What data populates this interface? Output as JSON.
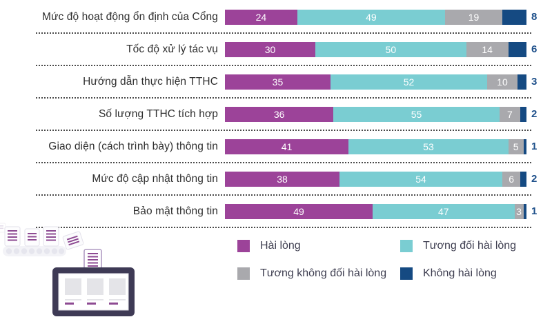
{
  "colors": {
    "purple": "#9c4399",
    "teal": "#7acdd2",
    "gray": "#a9a9ad",
    "navy": "#154a82",
    "label_text": "#2e2e2e",
    "outside_value_text": "#1d4f8a",
    "legend_text": "#3e3e50",
    "dotted_line": "#4a4a4a"
  },
  "chart_data": {
    "type": "bar",
    "orientation": "horizontal-stacked",
    "title": "",
    "xlabel": "",
    "ylabel": "",
    "xlim": [
      0,
      100
    ],
    "grid": false,
    "legend_position": "bottom",
    "value_labels": "inside-white, last segment value shown outside bar in navy",
    "outside_label_series": 3,
    "categories": [
      "Mức độ hoạt động ổn định của Cổng",
      "Tốc độ xử lý tác vụ",
      "Hướng dẫn thực hiện TTHC",
      "Số lượng TTHC tích hợp",
      "Giao diện (cách trình bày) thông tin",
      "Mức độ cập nhật thông tin",
      "Bảo mật thông tin"
    ],
    "series": [
      {
        "name": "Hài lòng",
        "color_key": "purple",
        "values": [
          24,
          30,
          35,
          36,
          41,
          38,
          49
        ]
      },
      {
        "name": "Tương đối hài lòng",
        "color_key": "teal",
        "values": [
          49,
          50,
          52,
          55,
          53,
          54,
          47
        ]
      },
      {
        "name": "Tương không đối hài lòng",
        "color_key": "gray",
        "values": [
          19,
          14,
          10,
          7,
          5,
          6,
          3
        ]
      },
      {
        "name": "Không hài lòng",
        "color_key": "navy",
        "values": [
          8,
          6,
          3,
          2,
          1,
          2,
          1
        ]
      }
    ]
  },
  "legend": {
    "items": [
      {
        "label": "Hài lòng",
        "color_key": "purple"
      },
      {
        "label": "Tương đối hài lòng",
        "color_key": "teal"
      },
      {
        "label": "Tương không đối hài lòng",
        "color_key": "gray"
      },
      {
        "label": "Không hài lòng",
        "color_key": "navy"
      }
    ]
  },
  "illustration": {
    "name": "documents-to-portal-illustration",
    "description": "decorative: document cards on conveyor belt feeding a monitor screen with content cards"
  }
}
